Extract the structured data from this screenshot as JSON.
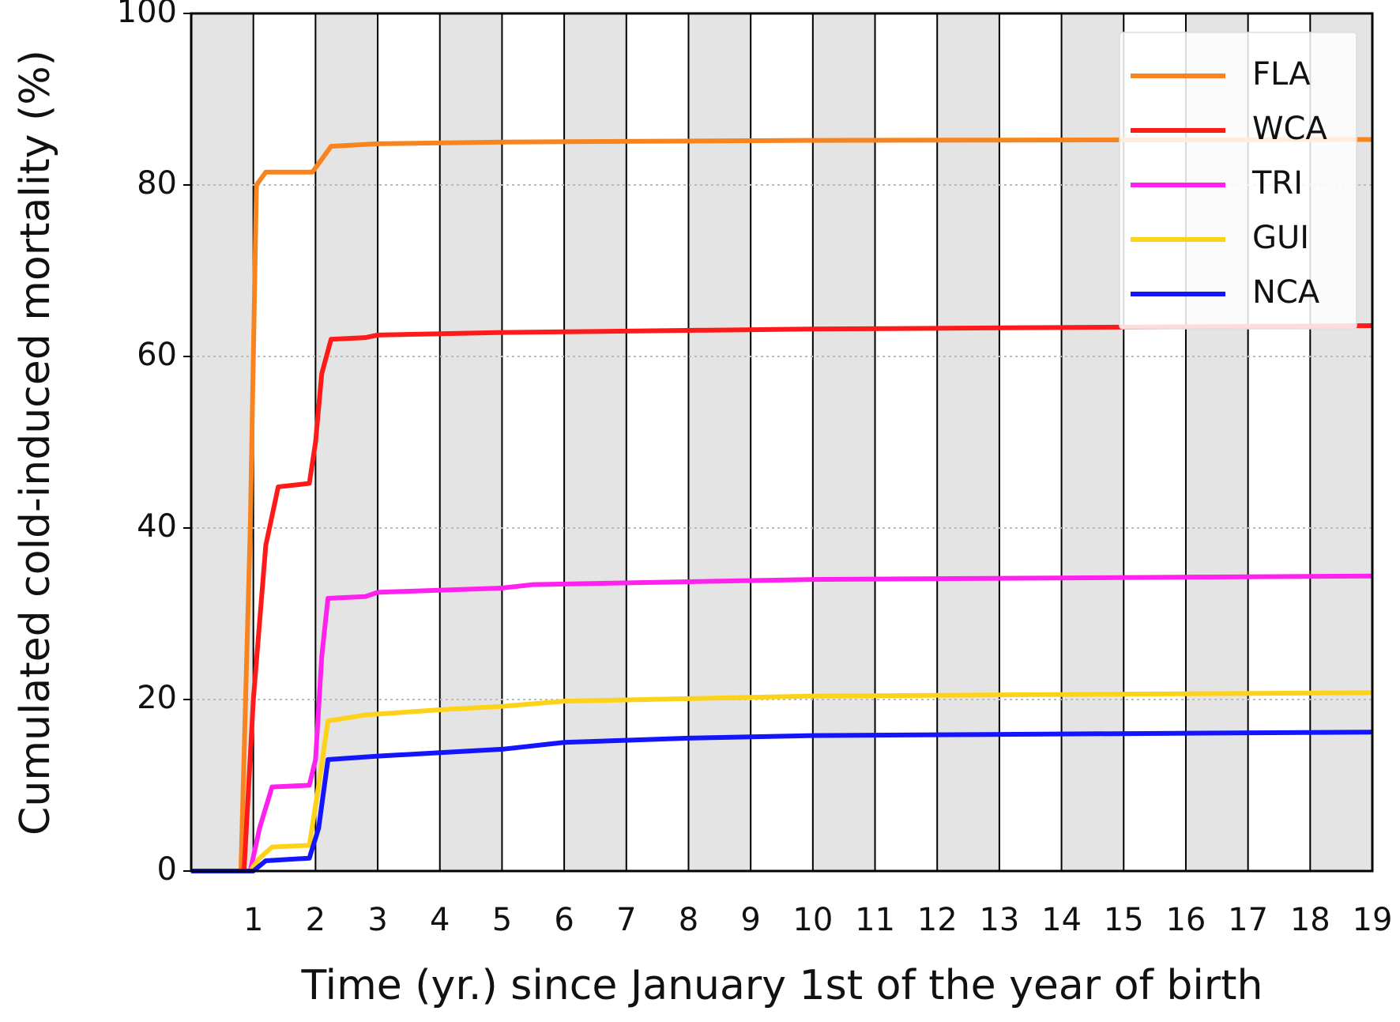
{
  "chart_data": {
    "type": "line",
    "xlabel": "Time (yr.) since January 1st of the year of birth",
    "ylabel": "Cumulated cold-induced mortality (%)",
    "xlim": [
      0,
      19
    ],
    "xticks": [
      1,
      2,
      3,
      4,
      5,
      6,
      7,
      8,
      9,
      10,
      11,
      12,
      13,
      14,
      15,
      16,
      17,
      18,
      19
    ],
    "ylim": [
      0,
      100
    ],
    "yticks": [
      0,
      20,
      40,
      60,
      80,
      100
    ],
    "grid": true,
    "legend": "upper right",
    "series": [
      {
        "name": "FLA",
        "color": "#f7841e",
        "x": [
          0,
          0.8,
          0.95,
          1.05,
          1.2,
          1.95,
          2.1,
          2.25,
          3,
          5,
          10,
          19
        ],
        "values": [
          0,
          0,
          40,
          80,
          81.5,
          81.5,
          83,
          84.5,
          84.8,
          85,
          85.2,
          85.3
        ]
      },
      {
        "name": "WCA",
        "color": "#ff1a1a",
        "x": [
          0,
          0.85,
          1.0,
          1.2,
          1.4,
          1.9,
          2.0,
          2.1,
          2.25,
          2.8,
          3,
          5,
          10,
          19
        ],
        "values": [
          0,
          0,
          20,
          38,
          44.8,
          45.2,
          50,
          58,
          62,
          62.2,
          62.5,
          62.8,
          63.2,
          63.6
        ]
      },
      {
        "name": "TRI",
        "color": "#ff22ee",
        "x": [
          0,
          0.95,
          1.1,
          1.3,
          1.9,
          2.0,
          2.1,
          2.2,
          2.8,
          3,
          5,
          5.5,
          10,
          19
        ],
        "values": [
          0,
          0,
          5,
          9.8,
          10,
          13,
          25,
          31.8,
          32,
          32.5,
          33,
          33.4,
          34,
          34.4
        ]
      },
      {
        "name": "GUI",
        "color": "#ffd21a",
        "x": [
          0,
          0.95,
          1.1,
          1.3,
          1.9,
          2.05,
          2.2,
          2.8,
          4,
          5,
          6,
          10,
          19
        ],
        "values": [
          0,
          0,
          1.5,
          2.8,
          3,
          10,
          17.5,
          18.2,
          18.8,
          19.2,
          19.8,
          20.4,
          20.8
        ]
      },
      {
        "name": "NCA",
        "color": "#1414ff",
        "x": [
          0,
          1.0,
          1.2,
          1.9,
          2.05,
          2.2,
          3,
          4,
          5,
          6,
          8,
          10,
          19
        ],
        "values": [
          0,
          0,
          1.2,
          1.5,
          5,
          13,
          13.4,
          13.8,
          14.2,
          15,
          15.5,
          15.8,
          16.2
        ]
      }
    ]
  }
}
